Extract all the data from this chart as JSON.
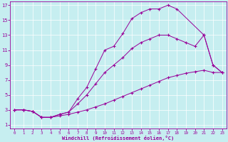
{
  "xlabel": "Windchill (Refroidissement éolien,°C)",
  "bg_color": "#c6eef0",
  "line_color": "#990099",
  "grid_color": "#ffffff",
  "xlim": [
    -0.5,
    23.5
  ],
  "ylim": [
    0.5,
    17.5
  ],
  "xticks": [
    0,
    1,
    2,
    3,
    4,
    5,
    6,
    7,
    8,
    9,
    10,
    11,
    12,
    13,
    14,
    15,
    16,
    17,
    18,
    19,
    20,
    21,
    22,
    23
  ],
  "yticks": [
    1,
    3,
    5,
    7,
    9,
    11,
    13,
    15,
    17
  ],
  "line1_x": [
    0,
    1,
    2,
    3,
    4,
    5,
    6,
    7,
    8,
    9,
    10,
    11,
    12,
    13,
    14,
    15,
    16,
    17,
    18,
    21,
    22,
    23
  ],
  "line1_y": [
    3,
    3,
    2.8,
    2.0,
    2.0,
    2.4,
    2.7,
    4.5,
    6.0,
    8.5,
    11.0,
    11.5,
    13.2,
    15.2,
    16.0,
    16.5,
    16.5,
    17.0,
    16.5,
    13.0,
    9.0,
    8.0
  ],
  "line2_x": [
    0,
    1,
    2,
    3,
    4,
    5,
    6,
    7,
    8,
    9,
    10,
    11,
    12,
    13,
    14,
    15,
    16,
    17,
    18,
    19,
    20,
    21,
    22,
    23
  ],
  "line2_y": [
    3,
    3,
    2.8,
    2.0,
    2.0,
    2.4,
    2.7,
    3.8,
    5.0,
    6.5,
    8.0,
    9.0,
    10.0,
    11.2,
    12.0,
    12.5,
    13.0,
    13.0,
    12.5,
    12.0,
    11.5,
    13.0,
    9.0,
    8.0
  ],
  "line3_x": [
    0,
    1,
    2,
    3,
    4,
    5,
    6,
    7,
    8,
    9,
    10,
    11,
    12,
    13,
    14,
    15,
    16,
    17,
    18,
    19,
    20,
    21,
    22,
    23
  ],
  "line3_y": [
    3,
    3,
    2.8,
    2.0,
    2.0,
    2.2,
    2.4,
    2.7,
    3.0,
    3.4,
    3.8,
    4.3,
    4.8,
    5.3,
    5.8,
    6.3,
    6.8,
    7.3,
    7.6,
    7.9,
    8.1,
    8.3,
    8.0,
    8.0
  ],
  "figsize": [
    3.2,
    2.0
  ],
  "dpi": 100
}
